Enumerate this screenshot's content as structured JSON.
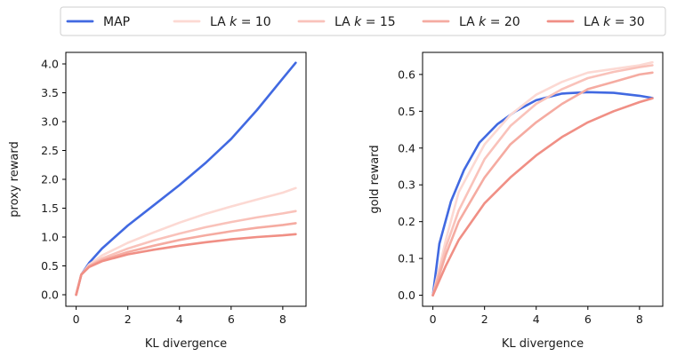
{
  "legend": [
    {
      "label": "MAP",
      "color": "#4169e1"
    },
    {
      "label": "LA k = 10",
      "color": "#fcd9d3"
    },
    {
      "label": "LA k = 15",
      "color": "#f9c2ba"
    },
    {
      "label": "LA k = 20",
      "color": "#f5aba1"
    },
    {
      "label": "LA k = 30",
      "color": "#f08f85"
    }
  ],
  "chart_data": [
    {
      "type": "line",
      "xlabel": "KL divergence",
      "ylabel": "proxy reward",
      "xlim": [
        -0.4,
        8.9
      ],
      "ylim": [
        -0.2,
        4.2
      ],
      "xticks": [
        0,
        2,
        4,
        6,
        8
      ],
      "yticks": [
        0.0,
        0.5,
        1.0,
        1.5,
        2.0,
        2.5,
        3.0,
        3.5,
        4.0
      ],
      "series": [
        {
          "name": "MAP",
          "color": "#4169e1",
          "x": [
            0,
            0.2,
            0.5,
            1,
            2,
            3,
            4,
            5,
            6,
            7,
            8,
            8.5
          ],
          "y": [
            0,
            0.35,
            0.55,
            0.8,
            1.2,
            1.55,
            1.9,
            2.28,
            2.7,
            3.2,
            3.75,
            4.02
          ]
        },
        {
          "name": "LA k = 10",
          "color": "#fcd9d3",
          "x": [
            0,
            0.2,
            0.5,
            1,
            2,
            3,
            4,
            5,
            6,
            7,
            8,
            8.5
          ],
          "y": [
            0,
            0.35,
            0.52,
            0.68,
            0.9,
            1.08,
            1.25,
            1.4,
            1.53,
            1.65,
            1.77,
            1.85
          ]
        },
        {
          "name": "LA k = 15",
          "color": "#f9c2ba",
          "x": [
            0,
            0.2,
            0.5,
            1,
            2,
            3,
            4,
            5,
            6,
            7,
            8,
            8.5
          ],
          "y": [
            0,
            0.35,
            0.5,
            0.63,
            0.8,
            0.94,
            1.06,
            1.17,
            1.26,
            1.34,
            1.41,
            1.45
          ]
        },
        {
          "name": "LA k = 20",
          "color": "#f5aba1",
          "x": [
            0,
            0.2,
            0.5,
            1,
            2,
            3,
            4,
            5,
            6,
            7,
            8,
            8.5
          ],
          "y": [
            0,
            0.35,
            0.49,
            0.6,
            0.74,
            0.85,
            0.95,
            1.03,
            1.1,
            1.16,
            1.21,
            1.24
          ]
        },
        {
          "name": "LA k = 30",
          "color": "#f08f85",
          "x": [
            0,
            0.2,
            0.5,
            1,
            2,
            3,
            4,
            5,
            6,
            7,
            8,
            8.5
          ],
          "y": [
            0,
            0.35,
            0.48,
            0.58,
            0.7,
            0.78,
            0.85,
            0.91,
            0.96,
            1.0,
            1.03,
            1.05
          ]
        }
      ]
    },
    {
      "type": "line",
      "xlabel": "KL divergence",
      "ylabel": "gold reward",
      "xlim": [
        -0.4,
        8.9
      ],
      "ylim": [
        -0.03,
        0.66
      ],
      "xticks": [
        0,
        2,
        4,
        6,
        8
      ],
      "yticks": [
        0.0,
        0.1,
        0.2,
        0.3,
        0.4,
        0.5,
        0.6
      ],
      "series": [
        {
          "name": "MAP",
          "color": "#4169e1",
          "x": [
            0,
            0.25,
            0.7,
            1.2,
            1.8,
            2.5,
            3.2,
            4,
            5,
            6,
            7,
            8,
            8.5
          ],
          "y": [
            0,
            0.14,
            0.255,
            0.34,
            0.415,
            0.465,
            0.5,
            0.53,
            0.548,
            0.552,
            0.55,
            0.542,
            0.536
          ]
        },
        {
          "name": "LA k = 10",
          "color": "#fcd9d3",
          "x": [
            0,
            0.5,
            1,
            2,
            3,
            4,
            5,
            6,
            7,
            8,
            8.5
          ],
          "y": [
            0,
            0.15,
            0.28,
            0.41,
            0.49,
            0.545,
            0.58,
            0.605,
            0.615,
            0.625,
            0.633
          ]
        },
        {
          "name": "LA k = 15",
          "color": "#f9c2ba",
          "x": [
            0,
            0.5,
            1,
            2,
            3,
            4,
            5,
            6,
            7,
            8,
            8.5
          ],
          "y": [
            0,
            0.13,
            0.23,
            0.37,
            0.46,
            0.52,
            0.56,
            0.59,
            0.607,
            0.62,
            0.625
          ]
        },
        {
          "name": "LA k = 20",
          "color": "#f5aba1",
          "x": [
            0,
            0.5,
            1,
            2,
            3,
            4,
            5,
            6,
            7,
            8,
            8.5
          ],
          "y": [
            0,
            0.11,
            0.2,
            0.32,
            0.41,
            0.47,
            0.52,
            0.56,
            0.58,
            0.6,
            0.605
          ]
        },
        {
          "name": "LA k = 30",
          "color": "#f08f85",
          "x": [
            0,
            0.5,
            1,
            2,
            3,
            4,
            5,
            6,
            7,
            8,
            8.5
          ],
          "y": [
            0,
            0.08,
            0.15,
            0.25,
            0.32,
            0.38,
            0.43,
            0.47,
            0.5,
            0.525,
            0.535
          ]
        }
      ]
    }
  ]
}
